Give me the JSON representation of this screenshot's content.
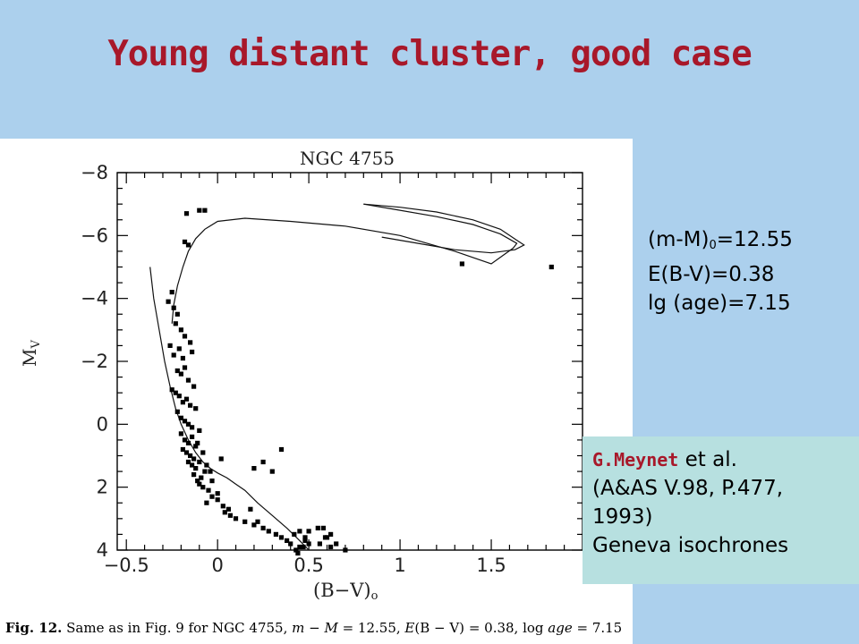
{
  "slide": {
    "title": "Young distant cluster, good case",
    "params": {
      "distance_modulus_prefix": "(m-M)",
      "distance_modulus_sub": "0",
      "distance_modulus_value": "=12.55",
      "reddening": "E(B-V)=0.38",
      "age": "lg (age)=7.15"
    },
    "reference": {
      "author": "G.Meynet",
      "etal": " et al.",
      "journal": "(A&AS V.98, P.477,",
      "year": "1993)",
      "note": "Geneva isochrones"
    },
    "figure_caption": {
      "fig_label": "Fig. 12.",
      "text_plain": " Same as in Fig. 9 for NGC 4755, ",
      "m": "m",
      "minus": " − ",
      "M": "M",
      "eq1": " = 12.55, ",
      "E": "E",
      "bv": "(B − V)",
      "eq2": " = 0.38, log ",
      "age": "age",
      "eq3": " = 7.15"
    }
  },
  "chart_data": {
    "type": "scatter",
    "title": "NGC 4755",
    "xlabel": "(B−V)o",
    "ylabel": "MV",
    "xlim": [
      -0.55,
      2.0
    ],
    "ylim": [
      4,
      -8
    ],
    "x_ticks": [
      "-0.5",
      "0",
      "0.5",
      "1",
      "1.5"
    ],
    "y_ticks": [
      "-8",
      "-6",
      "-4",
      "-2",
      "0",
      "2",
      "4"
    ],
    "series": [
      {
        "kind": "points",
        "x": [
          -0.17,
          -0.1,
          -0.07,
          -0.18,
          -0.16,
          -0.25,
          -0.27,
          -0.24,
          -0.22,
          -0.23,
          -0.2,
          -0.18,
          -0.15,
          -0.26,
          -0.24,
          -0.21,
          -0.19,
          -0.14,
          -0.22,
          -0.2,
          -0.18,
          -0.16,
          -0.13,
          -0.25,
          -0.23,
          -0.21,
          -0.19,
          -0.17,
          -0.15,
          -0.12,
          -0.22,
          -0.2,
          -0.18,
          -0.16,
          -0.14,
          -0.1,
          -0.2,
          -0.18,
          -0.16,
          -0.14,
          -0.12,
          -0.19,
          -0.17,
          -0.15,
          -0.13,
          -0.11,
          -0.08,
          -0.16,
          -0.14,
          -0.12,
          -0.1,
          -0.07,
          -0.13,
          -0.11,
          -0.09,
          -0.06,
          -0.04,
          -0.1,
          -0.08,
          -0.05,
          -0.03,
          0.0,
          0.02,
          -0.06,
          -0.03,
          0.0,
          0.03,
          0.06,
          0.2,
          0.25,
          0.3,
          0.35,
          0.04,
          0.07,
          0.1,
          0.15,
          0.18,
          0.2,
          0.22,
          0.25,
          0.28,
          0.32,
          0.35,
          0.38,
          0.4,
          0.42,
          0.45,
          0.48,
          0.5,
          0.55,
          0.6,
          0.62,
          0.65,
          0.43,
          0.45,
          0.48,
          0.5,
          0.58,
          0.56,
          0.59,
          0.62,
          0.7,
          0.44,
          0.47,
          1.34,
          1.83
        ],
        "y": [
          -6.7,
          -6.8,
          -6.8,
          -5.8,
          -5.7,
          -4.2,
          -3.9,
          -3.7,
          -3.5,
          -3.2,
          -3.0,
          -2.8,
          -2.6,
          -2.5,
          -2.2,
          -2.4,
          -2.1,
          -2.3,
          -1.7,
          -1.6,
          -1.8,
          -1.4,
          -1.2,
          -1.1,
          -1.0,
          -0.9,
          -0.7,
          -0.8,
          -0.6,
          -0.5,
          -0.4,
          -0.2,
          -0.1,
          0.0,
          0.1,
          0.2,
          0.3,
          0.5,
          0.6,
          0.4,
          0.7,
          0.8,
          0.9,
          1.0,
          1.1,
          0.6,
          0.9,
          1.2,
          1.3,
          1.4,
          1.2,
          1.5,
          1.6,
          1.8,
          1.7,
          1.3,
          1.5,
          1.9,
          2.0,
          2.1,
          1.8,
          2.2,
          1.1,
          2.5,
          2.3,
          2.4,
          2.6,
          2.7,
          1.4,
          1.2,
          1.5,
          0.8,
          2.8,
          2.9,
          3.0,
          3.1,
          2.7,
          3.2,
          3.1,
          3.3,
          3.4,
          3.5,
          3.6,
          3.7,
          3.8,
          3.5,
          3.9,
          3.6,
          3.8,
          3.3,
          3.6,
          3.9,
          3.8,
          4.0,
          3.4,
          3.7,
          3.4,
          3.3,
          3.8,
          3.6,
          3.5,
          4.0,
          4.1,
          3.9,
          -5.1,
          -5.0
        ]
      },
      {
        "kind": "curve",
        "x": [
          -0.25,
          -0.24,
          -0.22,
          -0.19,
          -0.16,
          -0.12,
          -0.07,
          0.0,
          0.15,
          0.4,
          0.7,
          1.0,
          1.3,
          1.5,
          1.62,
          1.64,
          1.55,
          1.4,
          1.2,
          0.95,
          0.8
        ],
        "y": [
          -3.2,
          -3.8,
          -4.4,
          -5.0,
          -5.5,
          -5.9,
          -6.2,
          -6.45,
          -6.55,
          -6.45,
          -6.3,
          -6.0,
          -5.5,
          -5.1,
          -5.6,
          -5.75,
          -6.05,
          -6.35,
          -6.6,
          -6.85,
          -7.0
        ]
      },
      {
        "kind": "curve",
        "x": [
          -0.37,
          -0.35,
          -0.32,
          -0.29,
          -0.26,
          -0.23,
          -0.2,
          -0.16,
          -0.12,
          -0.08,
          -0.04,
          0.0,
          0.05,
          0.1,
          0.15,
          0.22,
          0.3,
          0.38,
          0.45,
          0.5
        ],
        "y": [
          -5.0,
          -4.0,
          -3.0,
          -2.0,
          -1.2,
          -0.5,
          0.0,
          0.5,
          0.9,
          1.2,
          1.4,
          1.55,
          1.7,
          1.9,
          2.1,
          2.5,
          2.9,
          3.3,
          3.7,
          4.0
        ]
      },
      {
        "kind": "curve",
        "x": [
          0.8,
          1.0,
          1.2,
          1.4,
          1.55,
          1.64,
          1.68,
          1.63,
          1.5,
          1.3,
          1.1,
          0.9
        ],
        "y": [
          -7.0,
          -6.9,
          -6.75,
          -6.5,
          -6.2,
          -5.85,
          -5.7,
          -5.55,
          -5.45,
          -5.55,
          -5.75,
          -5.95
        ]
      }
    ]
  }
}
